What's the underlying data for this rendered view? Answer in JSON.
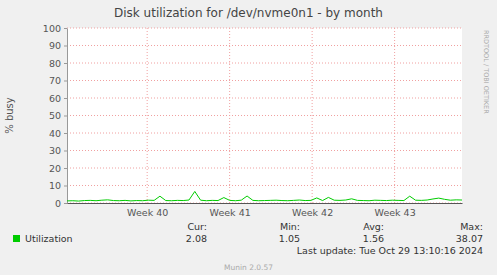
{
  "chart_data": {
    "type": "line",
    "title": "Disk utilization for /dev/nvme0n1 - by month",
    "y_label": "% busy",
    "x": [
      0,
      0.5,
      1,
      1.5,
      2,
      2.5,
      3,
      3.5,
      4,
      4.5,
      5,
      5.5,
      6,
      6.5,
      7,
      7.5,
      8,
      8.5,
      9,
      9.5,
      10,
      10.5,
      11,
      11.5,
      12,
      12.5,
      13,
      13.5,
      14,
      14.5,
      15,
      15.5,
      16,
      16.5,
      17,
      17.5,
      18,
      18.5,
      19,
      19.5,
      20,
      20.5,
      21,
      21.5,
      22,
      22.5,
      23,
      23.5,
      24,
      24.5,
      25,
      25.5,
      26,
      26.5,
      27,
      27.5,
      28,
      28.5,
      29,
      29.5,
      30,
      30.5,
      31,
      31.5,
      32,
      32.5,
      33,
      33.5,
      34
    ],
    "series": [
      {
        "name": "Utilization",
        "color": "#00cc00",
        "values": [
          1.2,
          1.3,
          1.1,
          1.4,
          1.5,
          1.3,
          1.6,
          1.8,
          1.4,
          1.3,
          1.5,
          1.2,
          1.4,
          1.3,
          1.6,
          1.5,
          3.9,
          1.4,
          1.3,
          1.5,
          1.4,
          1.7,
          6.6,
          1.6,
          1.3,
          1.5,
          1.4,
          3.1,
          1.5,
          1.3,
          1.6,
          4.0,
          1.5,
          1.3,
          1.4,
          1.5,
          1.6,
          1.4,
          1.3,
          1.5,
          1.7,
          1.4,
          1.5,
          2.9,
          1.4,
          3.2,
          1.6,
          1.5,
          1.7,
          2.4,
          1.5,
          1.4,
          1.3,
          1.6,
          1.5,
          1.4,
          1.6,
          1.5,
          1.4,
          3.9,
          1.6,
          1.5,
          1.7,
          2.3,
          2.8,
          2.1,
          1.6,
          1.8,
          1.7
        ]
      }
    ],
    "xlim": [
      0,
      34
    ],
    "xticks": [
      {
        "value": 6.9,
        "label": "Week 40"
      },
      {
        "value": 14,
        "label": "Week 41"
      },
      {
        "value": 21.1,
        "label": "Week 42"
      },
      {
        "value": 28.2,
        "label": "Week 43"
      }
    ],
    "ylim": [
      0,
      100
    ],
    "yticks": [
      0,
      10,
      20,
      30,
      40,
      50,
      60,
      70,
      80,
      90,
      100
    ],
    "grid": true,
    "legend": "bottom",
    "stats": [
      {
        "label": "Cur:",
        "value": 2.08
      },
      {
        "label": "Min:",
        "value": 1.05
      },
      {
        "label": "Avg:",
        "value": 1.56
      },
      {
        "label": "Max:",
        "value": 38.07
      }
    ],
    "last_update": "Last update: Tue Oct 29 13:10:16 2024",
    "footer": "Munin 2.0.57",
    "watermark": "RRDTOOL / TOBI OETIKER"
  }
}
